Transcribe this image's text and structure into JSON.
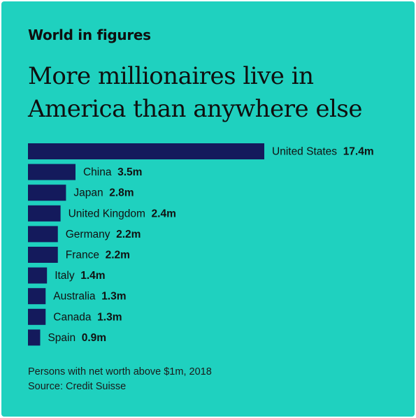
{
  "kicker": "World in figures",
  "headline": "More millionaires live in America than anywhere else",
  "footer": {
    "note": "Persons with net worth above $1m, 2018",
    "source": "Source: Credit Suisse"
  },
  "colors": {
    "background": "#1fd1bf",
    "bar": "#141a5c",
    "text": "#0f0f0f"
  },
  "chart_data": {
    "type": "bar",
    "orientation": "horizontal",
    "categories": [
      "United States",
      "China",
      "Japan",
      "United Kingdom",
      "Germany",
      "France",
      "Italy",
      "Australia",
      "Canada",
      "Spain"
    ],
    "values": [
      17.4,
      3.5,
      2.8,
      2.4,
      2.2,
      2.2,
      1.4,
      1.3,
      1.3,
      0.9
    ],
    "value_labels": [
      "17.4m",
      "3.5m",
      "2.8m",
      "2.4m",
      "2.2m",
      "2.2m",
      "1.4m",
      "1.3m",
      "1.3m",
      "0.9m"
    ],
    "title": "More millionaires live in America than anywhere else",
    "xlabel": "",
    "ylabel": "",
    "grid": false,
    "legend": "none"
  }
}
